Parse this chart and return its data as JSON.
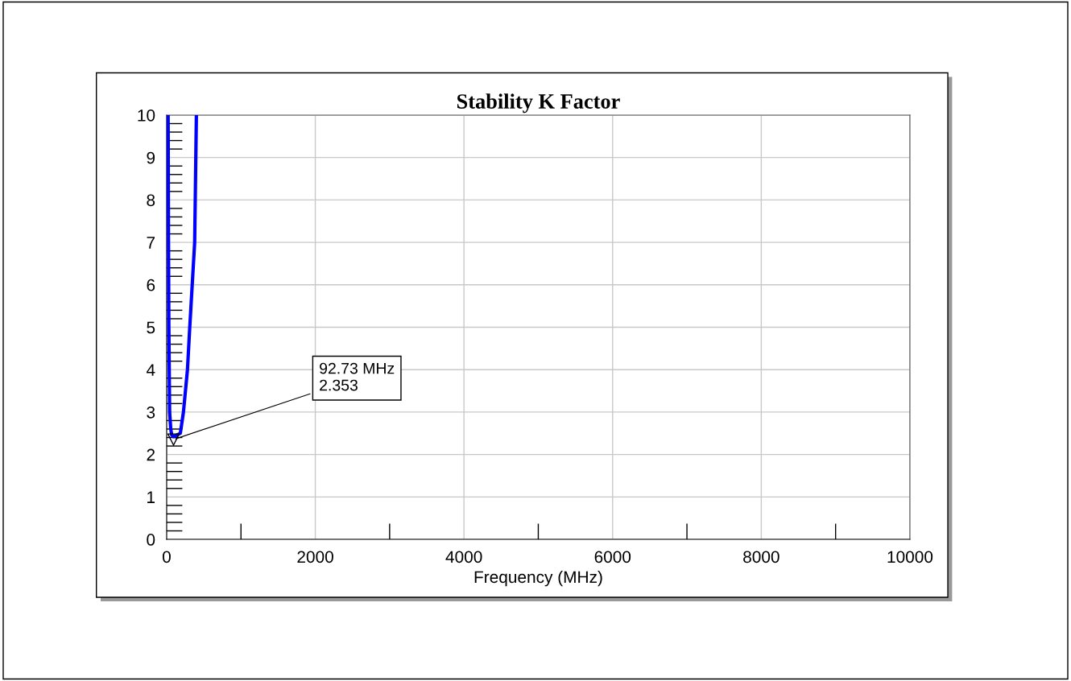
{
  "chart_data": {
    "type": "line",
    "title": "Stability K Factor",
    "xlabel": "Frequency (MHz)",
    "x": [
      20,
      25,
      30,
      40,
      55,
      70,
      92.73,
      130,
      184,
      226,
      280,
      311,
      377,
      400
    ],
    "series": [
      {
        "color": "#0000ff",
        "values": [
          10,
          7,
          5,
          3,
          2.6,
          2.45,
          2.42,
          2.45,
          2.5,
          3,
          4,
          5,
          7,
          10
        ]
      }
    ],
    "annotations": [
      {
        "text": "92.73 MHz\n2.353",
        "x": 92.73,
        "y": 2.353
      }
    ],
    "xlim": [
      0,
      10000
    ],
    "ylim": [
      0,
      10
    ],
    "xticks": [
      0,
      2000,
      4000,
      6000,
      8000,
      10000
    ],
    "yticks": [
      0,
      1,
      2,
      3,
      4,
      5,
      6,
      7,
      8,
      9,
      10
    ],
    "grid": true,
    "marker": "none",
    "line_style": "solid"
  }
}
